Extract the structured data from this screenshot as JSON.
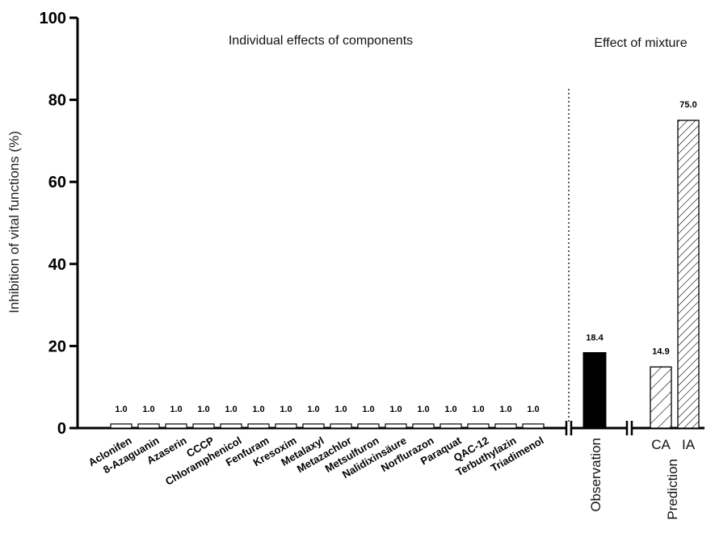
{
  "chart_data": {
    "type": "bar",
    "ylabel": "Inhibition of vital functions (%)",
    "ylim": [
      0,
      100
    ],
    "yticks": [
      0,
      20,
      40,
      60,
      80,
      100
    ],
    "panel_titles": {
      "individual": "Individual effects of components",
      "mixture": "Effect of mixture"
    },
    "individual": {
      "categories": [
        "Aclonifen",
        "8-Azaguanin",
        "Azaserin",
        "CCCP",
        "Chloramphenicol",
        "Fenfuram",
        "Kresoxim",
        "Metalaxyl",
        "Metazachlor",
        "Metsulfuron",
        "Nalidixinsäure",
        "Norflurazon",
        "Paraquat",
        "QAC-12",
        "Terbuthylazin",
        "Triadimenol"
      ],
      "values": [
        1.0,
        1.0,
        1.0,
        1.0,
        1.0,
        1.0,
        1.0,
        1.0,
        1.0,
        1.0,
        1.0,
        1.0,
        1.0,
        1.0,
        1.0,
        1.0
      ],
      "labels": [
        "1.0",
        "1.0",
        "1.0",
        "1.0",
        "1.0",
        "1.0",
        "1.0",
        "1.0",
        "1.0",
        "1.0",
        "1.0",
        "1.0",
        "1.0",
        "1.0",
        "1.0",
        "1.0"
      ]
    },
    "observation": {
      "group_label": "Observation",
      "value": 18.4,
      "label": "18.4"
    },
    "prediction": {
      "group_label": "Prediction",
      "categories": [
        "CA",
        "IA"
      ],
      "values": [
        14.9,
        75.0
      ],
      "labels": [
        "14.9",
        "75.0"
      ]
    }
  }
}
